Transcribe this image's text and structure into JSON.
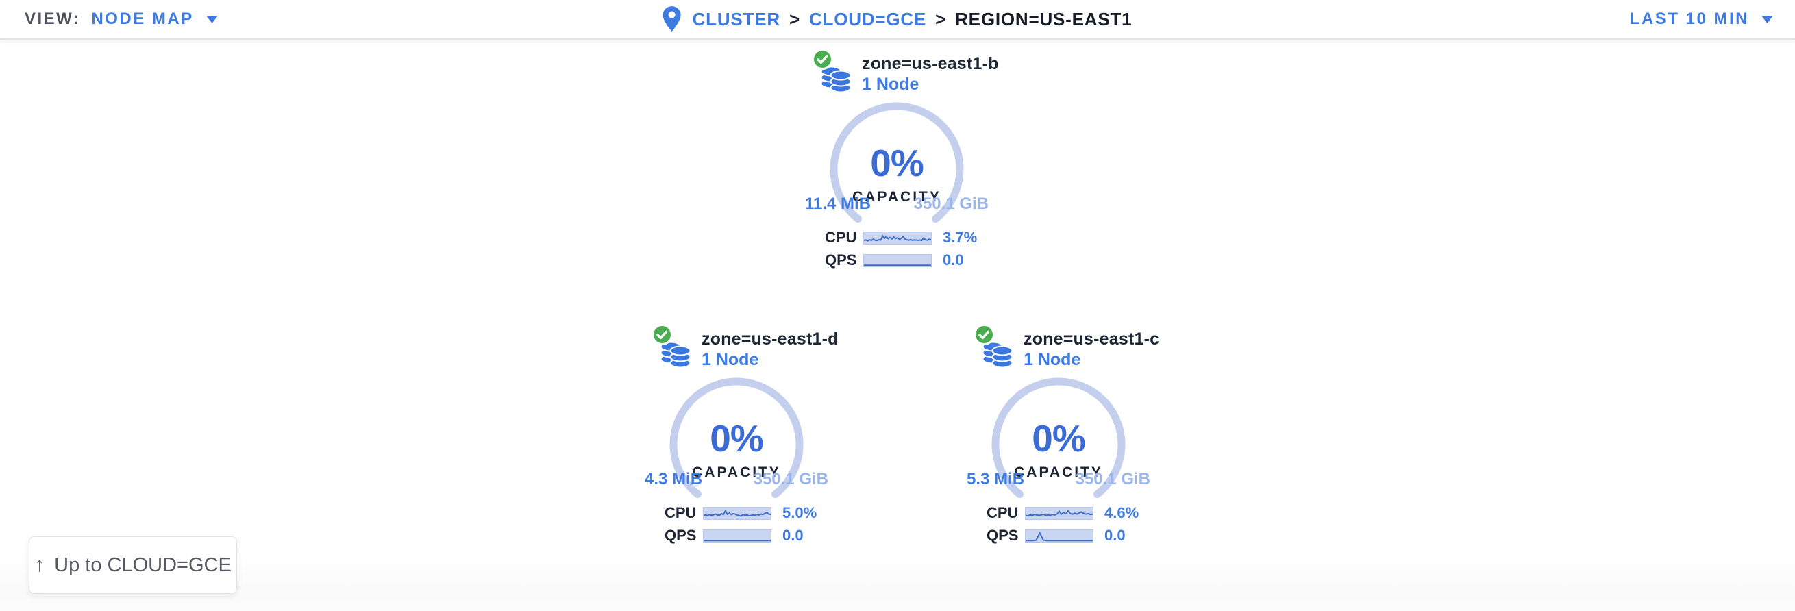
{
  "topbar": {
    "view_label": "VIEW:",
    "view_value": "NODE MAP",
    "time_range": "LAST 10 MIN",
    "breadcrumb": {
      "cluster": "CLUSTER",
      "separator": ">",
      "cloud": "CLOUD=GCE",
      "region": "REGION=US-EAST1"
    }
  },
  "card_labels": {
    "capacity": "CAPACITY",
    "cpu": "CPU",
    "qps": "QPS"
  },
  "zones": [
    {
      "name": "zone=us-east1-b",
      "node_count": "1 Node",
      "capacity_pct": "0%",
      "capacity_used": "11.4 MiB",
      "capacity_total": "350.1 GiB",
      "cpu_value": "3.7%",
      "qps_value": "0.0",
      "cpu_spark": [
        0.25,
        0.3,
        0.2,
        0.33,
        0.26,
        0.4,
        0.28,
        0.24,
        0.34,
        0.3,
        0.78,
        0.5,
        0.72,
        0.46,
        0.6,
        0.42,
        0.66,
        0.48,
        0.56,
        0.38,
        0.5,
        0.68,
        0.42,
        0.33,
        0.28,
        0.34,
        0.27,
        0.31,
        0.29,
        0.27,
        0.3,
        0.26,
        0.54,
        0.33,
        0.28,
        0.4,
        0.32
      ],
      "qps_spark": [
        0,
        0,
        0,
        0,
        0,
        0,
        0,
        0,
        0,
        0,
        0,
        0,
        0,
        0,
        0,
        0,
        0,
        0,
        0,
        0
      ]
    },
    {
      "name": "zone=us-east1-d",
      "node_count": "1 Node",
      "capacity_pct": "0%",
      "capacity_used": "4.3 MiB",
      "capacity_total": "350.1 GiB",
      "cpu_value": "5.0%",
      "qps_value": "0.0",
      "cpu_spark": [
        0.3,
        0.34,
        0.27,
        0.4,
        0.3,
        0.36,
        0.46,
        0.34,
        0.3,
        0.5,
        0.4,
        0.82,
        0.44,
        0.56,
        0.38,
        0.5,
        0.44,
        0.34,
        0.28,
        0.22,
        0.4,
        0.3,
        0.36,
        0.24,
        0.3,
        0.34,
        0.3,
        0.4,
        0.34,
        0.46,
        0.4,
        0.52,
        0.66,
        0.44,
        0.4
      ],
      "qps_spark": [
        0,
        0,
        0,
        0,
        0,
        0,
        0,
        0,
        0,
        0,
        0,
        0,
        0,
        0,
        0,
        0,
        0,
        0,
        0,
        0
      ]
    },
    {
      "name": "zone=us-east1-c",
      "node_count": "1 Node",
      "capacity_pct": "0%",
      "capacity_used": "5.3 MiB",
      "capacity_total": "350.1 GiB",
      "cpu_value": "4.6%",
      "qps_value": "0.0",
      "cpu_spark": [
        0.3,
        0.24,
        0.35,
        0.3,
        0.4,
        0.34,
        0.3,
        0.35,
        0.42,
        0.3,
        0.36,
        0.3,
        0.4,
        0.34,
        0.46,
        0.76,
        0.44,
        0.64,
        0.5,
        0.82,
        0.5,
        0.44,
        0.56,
        0.44,
        0.6,
        0.7,
        0.5,
        0.44,
        0.5,
        0.4,
        0.44
      ],
      "qps_spark": [
        0,
        0,
        0,
        0.05,
        0.9,
        0.05,
        0,
        0,
        0,
        0,
        0,
        0,
        0,
        0,
        0,
        0,
        0,
        0,
        0,
        0
      ]
    }
  ],
  "up_button": {
    "label": "Up to CLOUD=GCE"
  },
  "colors": {
    "accent": "#3d7be3",
    "accent-deep": "#3a6bd6",
    "arc": "#c3cfec",
    "total-blue": "#9ab5ea",
    "dark": "#1c2634",
    "green": "#4aae50",
    "spark-fill": "#c9d5f1",
    "spark-line": "#3d6cc4",
    "db-blue": "#3b77e0"
  }
}
